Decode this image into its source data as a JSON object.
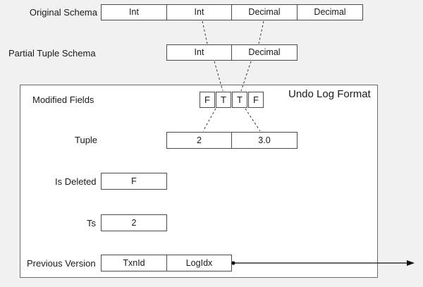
{
  "original_schema": {
    "label": "Original Schema",
    "cells": [
      "Int",
      "Int",
      "Decimal",
      "Decimal"
    ]
  },
  "partial_schema": {
    "label": "Partial Tuple Schema",
    "cells": [
      "Int",
      "Decimal"
    ]
  },
  "undo_log": {
    "title": "Undo Log Format",
    "modified_fields": {
      "label": "Modified Fields",
      "bits": [
        "F",
        "T",
        "T",
        "F"
      ]
    },
    "tuple": {
      "label": "Tuple",
      "values": [
        "2",
        "3.0"
      ]
    },
    "is_deleted": {
      "label": "Is Deleted",
      "value": "F"
    },
    "ts": {
      "label": "Ts",
      "value": "2"
    },
    "previous_version": {
      "label": "Previous Version",
      "cells": [
        "TxnId",
        "LogIdx"
      ]
    }
  },
  "colors": {
    "background": "#f1f1f2",
    "box_fill": "#ffffff",
    "stroke": "#4a4a4a"
  }
}
